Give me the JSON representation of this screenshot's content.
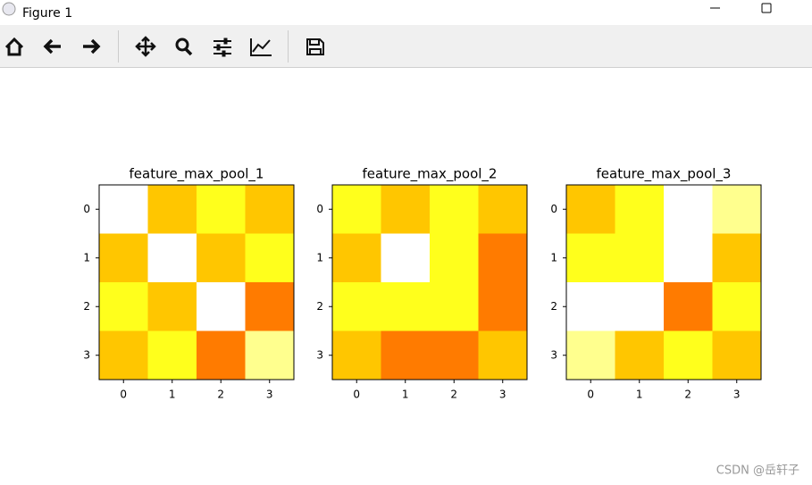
{
  "window": {
    "title": "Figure 1"
  },
  "watermark": "CSDN @岳轩子",
  "chart_data": [
    {
      "type": "heatmap",
      "title": "feature_max_pool_1",
      "colormap": "hot_r",
      "clim": [
        0,
        9
      ],
      "xlim": [
        -0.5,
        3.5
      ],
      "ylim": [
        3.5,
        -0.5
      ],
      "xticks": [
        0,
        1,
        2,
        3
      ],
      "yticks": [
        0,
        1,
        2,
        3
      ],
      "values": [
        [
          0,
          3,
          2,
          3
        ],
        [
          3,
          0,
          3,
          2
        ],
        [
          2,
          3,
          0,
          4
        ],
        [
          3,
          2,
          4,
          1
        ]
      ]
    },
    {
      "type": "heatmap",
      "title": "feature_max_pool_2",
      "colormap": "hot_r",
      "clim": [
        0,
        9
      ],
      "xlim": [
        -0.5,
        3.5
      ],
      "ylim": [
        3.5,
        -0.5
      ],
      "xticks": [
        0,
        1,
        2,
        3
      ],
      "yticks": [
        0,
        1,
        2,
        3
      ],
      "values": [
        [
          2,
          3,
          2,
          3
        ],
        [
          3,
          0,
          2,
          4
        ],
        [
          2,
          2,
          2,
          4
        ],
        [
          3,
          4,
          4,
          3
        ]
      ]
    },
    {
      "type": "heatmap",
      "title": "feature_max_pool_3",
      "colormap": "hot_r",
      "clim": [
        0,
        9
      ],
      "xlim": [
        -0.5,
        3.5
      ],
      "ylim": [
        3.5,
        -0.5
      ],
      "xticks": [
        0,
        1,
        2,
        3
      ],
      "yticks": [
        0,
        1,
        2,
        3
      ],
      "values": [
        [
          3,
          2,
          0,
          1
        ],
        [
          2,
          2,
          0,
          3
        ],
        [
          0,
          0,
          4,
          2
        ],
        [
          1,
          3,
          2,
          3
        ]
      ]
    }
  ]
}
